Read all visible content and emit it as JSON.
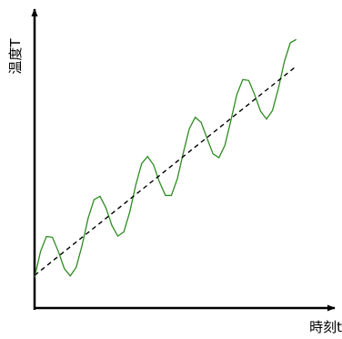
{
  "chart_data": {
    "type": "line",
    "xlabel": "時刻t",
    "ylabel": "温度T",
    "xlim": [
      0,
      100
    ],
    "ylim": [
      0,
      100
    ],
    "x": [
      0,
      2,
      4,
      6,
      8,
      10,
      12,
      14,
      16,
      18,
      20,
      22,
      24,
      26,
      28,
      30,
      32,
      34,
      36,
      38,
      40,
      42,
      44,
      46,
      48,
      50,
      52,
      54,
      56,
      58,
      60,
      62,
      64,
      66,
      68,
      70,
      72,
      74,
      76,
      78,
      80,
      82,
      84,
      86,
      88
    ],
    "series": [
      {
        "color": "#2e8b22",
        "linestyle": "solid",
        "values": [
          10.3,
          19.0,
          24.1,
          23.8,
          19.0,
          13.3,
          10.8,
          13.7,
          21.2,
          30.2,
          36.5,
          37.6,
          33.7,
          27.8,
          24.2,
          25.6,
          32.3,
          41.3,
          48.6,
          51.0,
          48.2,
          42.4,
          37.9,
          37.9,
          43.5,
          52.2,
          60.3,
          64.2,
          62.5,
          57.1,
          51.9,
          50.6,
          54.8,
          63.1,
          71.8,
          76.9,
          76.6,
          71.8,
          66.2,
          63.6,
          66.5,
          74.0,
          83.0,
          89.3,
          90.4
        ]
      },
      {
        "color": "#000000",
        "linestyle": "dashed",
        "x": [
          0,
          88
        ],
        "values": [
          11,
          81.4
        ]
      }
    ]
  }
}
